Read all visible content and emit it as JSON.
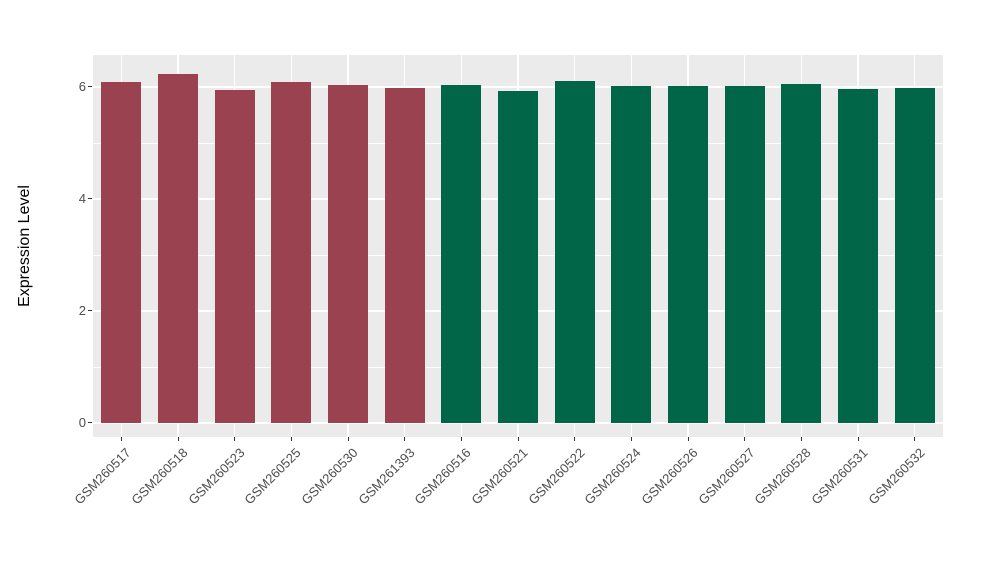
{
  "chart_data": {
    "type": "bar",
    "title": "",
    "xlabel": "",
    "ylabel": "Expression Level",
    "yticks": [
      0,
      2,
      4,
      6
    ],
    "minor_yticks": [
      1,
      3,
      5
    ],
    "ylim": [
      -0.25,
      6.57
    ],
    "grid": true,
    "legend": "none",
    "bars": [
      {
        "label": "GSM260517",
        "value": 6.09,
        "color": "#9A4250"
      },
      {
        "label": "GSM260518",
        "value": 6.24,
        "color": "#9A4250"
      },
      {
        "label": "GSM260523",
        "value": 5.94,
        "color": "#9A4250"
      },
      {
        "label": "GSM260525",
        "value": 6.08,
        "color": "#9A4250"
      },
      {
        "label": "GSM260530",
        "value": 6.04,
        "color": "#9A4250"
      },
      {
        "label": "GSM261393",
        "value": 5.99,
        "color": "#9A4250"
      },
      {
        "label": "GSM260516",
        "value": 6.03,
        "color": "#006647"
      },
      {
        "label": "GSM260521",
        "value": 5.93,
        "color": "#006647"
      },
      {
        "label": "GSM260522",
        "value": 6.11,
        "color": "#006647"
      },
      {
        "label": "GSM260524",
        "value": 6.02,
        "color": "#006647"
      },
      {
        "label": "GSM260526",
        "value": 6.01,
        "color": "#006647"
      },
      {
        "label": "GSM260527",
        "value": 6.02,
        "color": "#006647"
      },
      {
        "label": "GSM260528",
        "value": 6.05,
        "color": "#006647"
      },
      {
        "label": "GSM260531",
        "value": 5.97,
        "color": "#006647"
      },
      {
        "label": "GSM260532",
        "value": 5.99,
        "color": "#006647"
      }
    ]
  },
  "colors": {
    "group_red": "#9A4250",
    "group_green": "#006647",
    "panel_background": "#EBEBEB",
    "gridline": "#FFFFFF",
    "axis_text": "#4D4D4D",
    "axis_title": "#000000"
  }
}
